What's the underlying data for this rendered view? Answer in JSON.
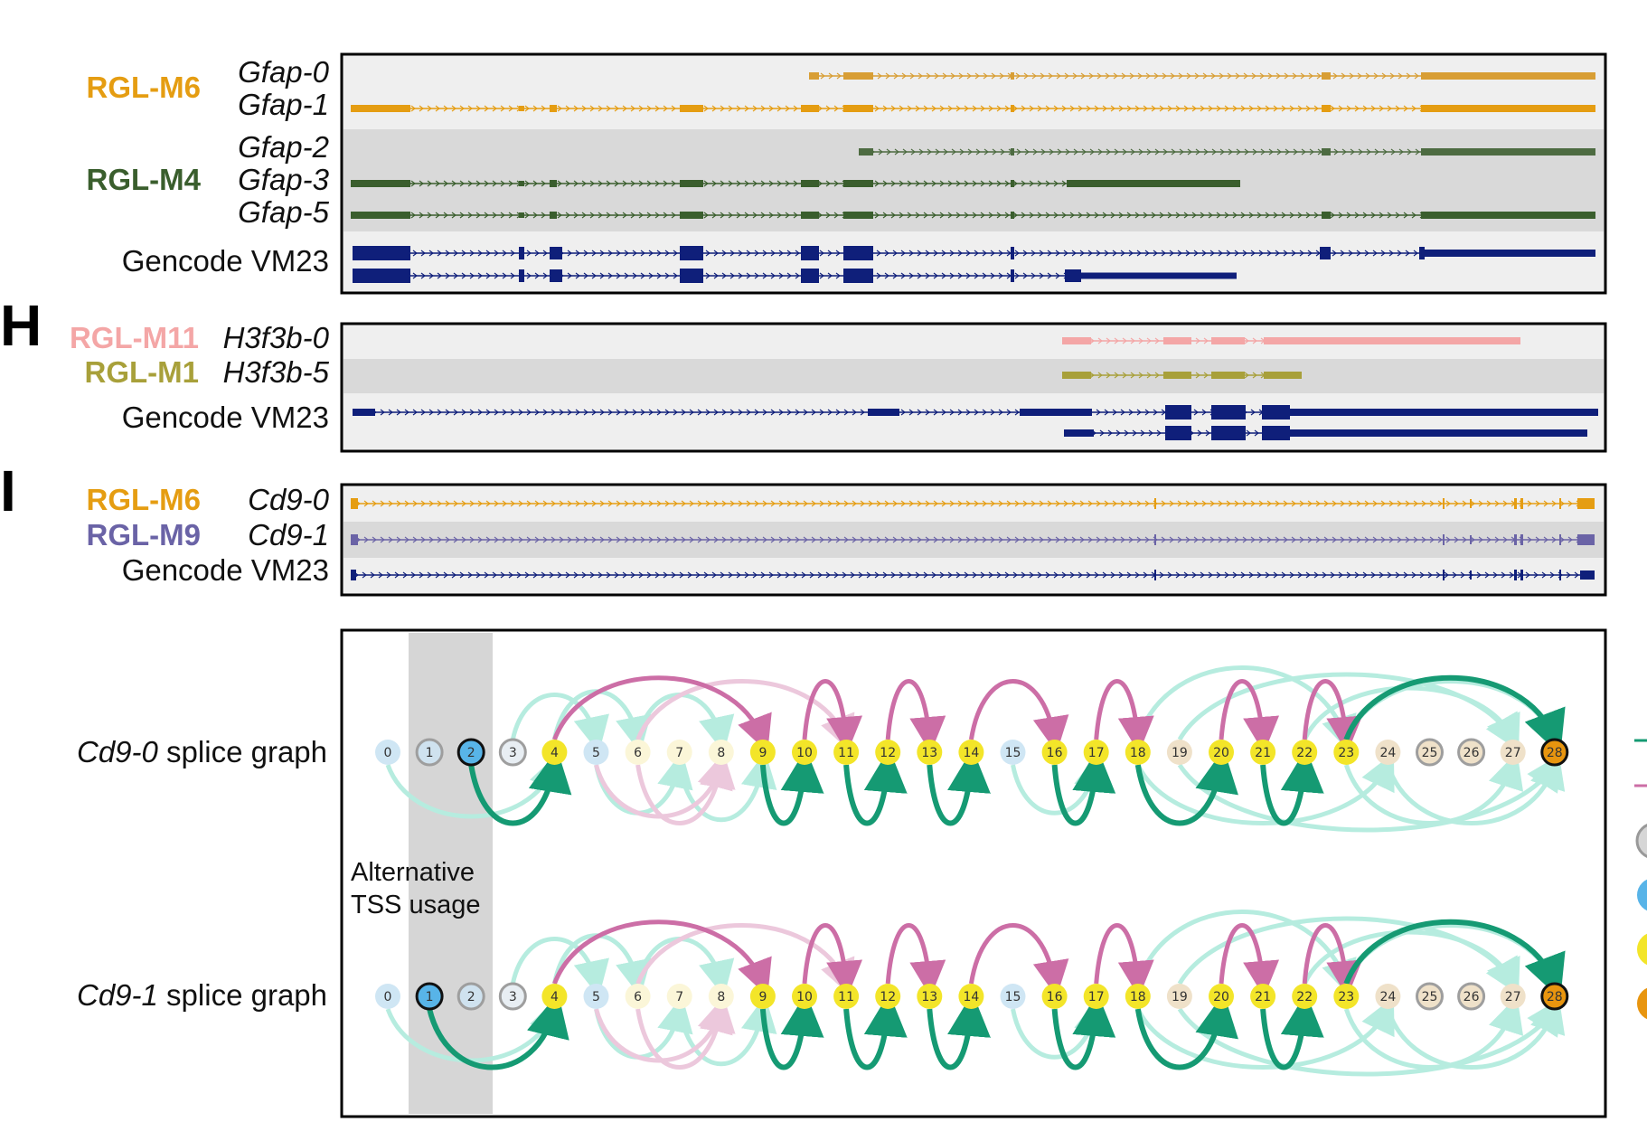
{
  "panels": {
    "H_label": "H",
    "I_label": "I"
  },
  "gfap": {
    "modules": [
      {
        "name": "RGL-M6",
        "color": "#e59d12"
      },
      {
        "name": "RGL-M4",
        "color": "#3a5e2d"
      }
    ],
    "isoforms": [
      "Gfap-0",
      "Gfap-1",
      "Gfap-2",
      "Gfap-3",
      "Gfap-5"
    ],
    "reference": "Gencode VM23"
  },
  "h3f3b": {
    "modules": [
      {
        "name": "RGL-M11",
        "color": "#f4a6a6"
      },
      {
        "name": "RGL-M1",
        "color": "#a8a03a"
      }
    ],
    "isoforms": [
      "H3f3b-0",
      "H3f3b-5"
    ],
    "reference": "Gencode VM23"
  },
  "cd9": {
    "modules": [
      {
        "name": "RGL-M6",
        "color": "#e59d12"
      },
      {
        "name": "RGL-M9",
        "color": "#6a63a6"
      }
    ],
    "isoforms": [
      "Cd9-0",
      "Cd9-1"
    ],
    "reference": "Gencode VM23"
  },
  "splice_graphs": {
    "graph0_label_italic": "Cd9-0",
    "graph1_label_italic": "Cd9-1",
    "graph_suffix": " splice graph",
    "annotation_line1": "Alternative",
    "annotation_line2": "TSS usage",
    "nodes": [
      "0",
      "1",
      "2",
      "3",
      "4",
      "5",
      "6",
      "7",
      "8",
      "9",
      "10",
      "11",
      "12",
      "13",
      "14",
      "15",
      "16",
      "17",
      "18",
      "19",
      "20",
      "21",
      "22",
      "23",
      "24",
      "25",
      "26",
      "27",
      "28"
    ],
    "colors": {
      "green": "#159a73",
      "magenta": "#cc6ea6",
      "faint_green": "#b6ecdf",
      "faint_magenta": "#ecc8dc",
      "yellow_node": "#f3e529",
      "blue_node": "#58b4e8",
      "orange_node": "#e8950f",
      "grey_node": "#b8b8b8"
    }
  }
}
